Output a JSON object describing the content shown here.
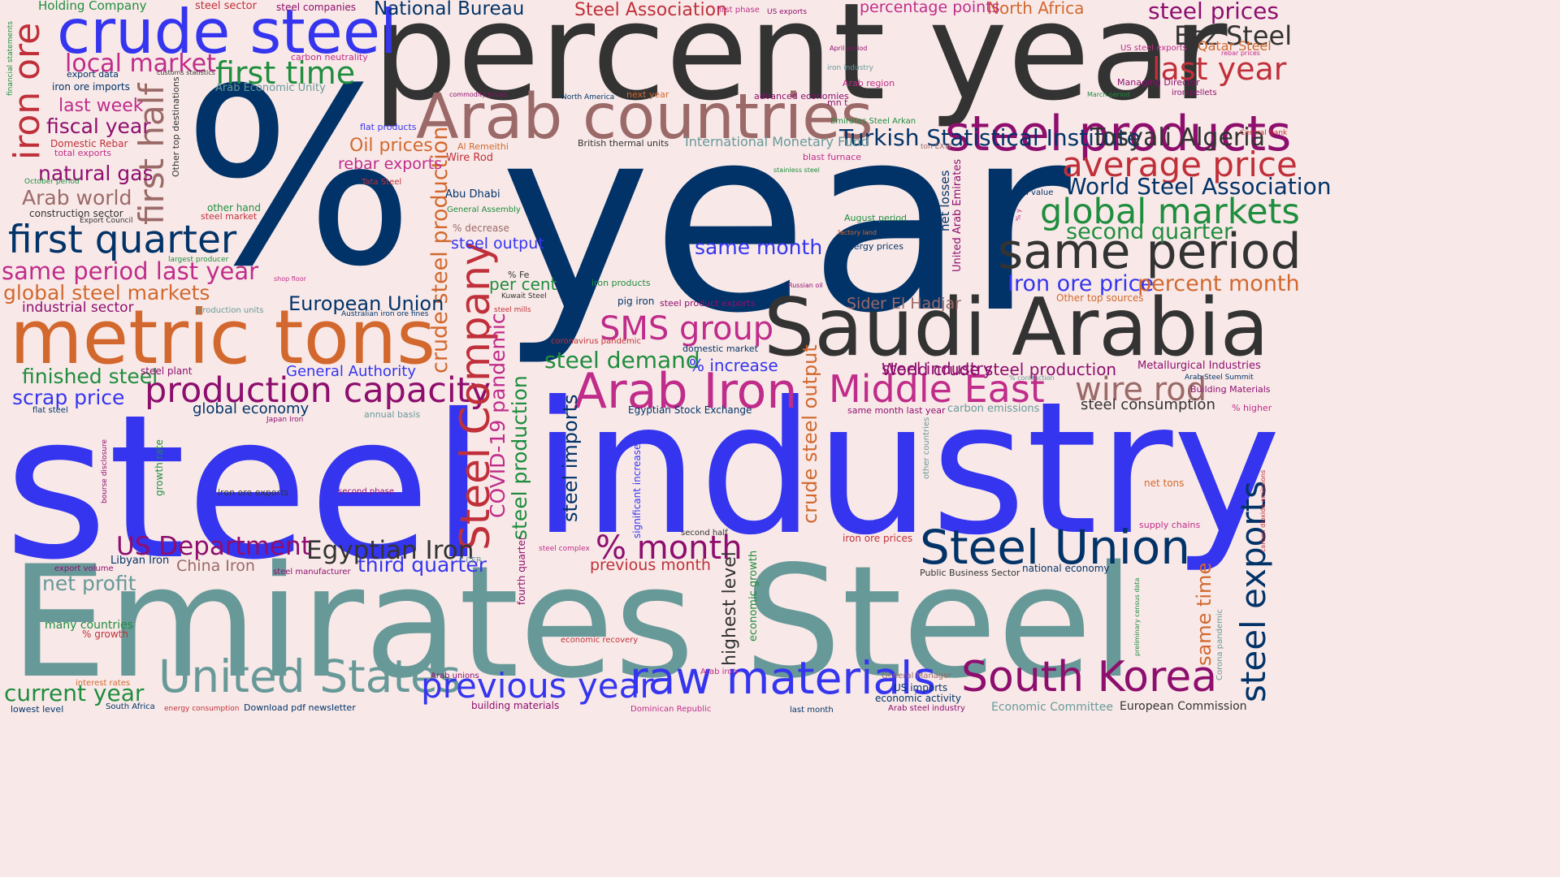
{
  "image_title": "",
  "background": "#f8e9e8",
  "palette": {
    "navy": "#023368",
    "charcoal": "#333333",
    "blue": "#3535ef",
    "teal": "#689999",
    "orange": "#d2682e",
    "crimson": "#c0303a",
    "magenta": "#c02c8a",
    "purple": "#8e0e6e",
    "green": "#1f8d3e",
    "mauve": "#9b6a68"
  },
  "words": [
    {
      "text": "steel",
      "rot": 0
    },
    {
      "text": "industry",
      "rot": 0
    },
    {
      "text": "Emirates Steel",
      "rot": 0
    },
    {
      "text": "year",
      "rot": 0
    },
    {
      "text": "%",
      "rot": 0
    },
    {
      "text": "percent year",
      "rot": 0
    },
    {
      "text": "Saudi Arabia",
      "rot": 0
    },
    {
      "text": "metric tons",
      "rot": 0
    },
    {
      "text": "Arab countries",
      "rot": 0
    },
    {
      "text": "crude steel",
      "rot": 0
    },
    {
      "text": "steel products",
      "rot": 0
    },
    {
      "text": "same period",
      "rot": 0
    },
    {
      "text": "United States",
      "rot": 0
    },
    {
      "text": "raw materials",
      "rot": 0
    },
    {
      "text": "South Korea",
      "rot": 0
    },
    {
      "text": "Steel Union",
      "rot": 0
    },
    {
      "text": "Arab Iron",
      "rot": 0
    },
    {
      "text": "Middle East",
      "rot": 0
    },
    {
      "text": "previous year",
      "rot": 0
    },
    {
      "text": "production capacity",
      "rot": 0
    },
    {
      "text": "first quarter",
      "rot": 0
    },
    {
      "text": "global markets",
      "rot": 0
    },
    {
      "text": "average price",
      "rot": 0
    },
    {
      "text": "SMS group",
      "rot": 0
    },
    {
      "text": "% month",
      "rot": 0
    },
    {
      "text": "wire rod",
      "rot": 0
    },
    {
      "text": "first time",
      "rot": 0
    },
    {
      "text": "last year",
      "rot": 0
    },
    {
      "text": "Ezz Steel",
      "rot": 0
    },
    {
      "text": "steel prices",
      "rot": 0
    },
    {
      "text": "same period last year",
      "rot": 0
    },
    {
      "text": "local market",
      "rot": 0
    },
    {
      "text": "Steel Company",
      "rot": 90
    },
    {
      "text": "steel industry",
      "rot": 0
    },
    {
      "text": "Turkish Statistical Institute",
      "rot": 0
    },
    {
      "text": "World Steel Association",
      "rot": 0
    },
    {
      "text": "Tosyali Algeria",
      "rot": 0
    },
    {
      "text": "second quarter",
      "rot": 0
    },
    {
      "text": "Iron ore price",
      "rot": 0
    },
    {
      "text": "percent month",
      "rot": 0
    },
    {
      "text": "Egyptian Iron",
      "rot": 0
    },
    {
      "text": "US Department",
      "rot": 0
    },
    {
      "text": "steel demand",
      "rot": 0
    },
    {
      "text": "current year",
      "rot": 0
    },
    {
      "text": "iron ore",
      "rot": 90
    },
    {
      "text": "first half",
      "rot": 90
    },
    {
      "text": "steel exports",
      "rot": 90
    },
    {
      "text": "crude steel production",
      "rot": 90
    },
    {
      "text": "steel production",
      "rot": 90
    },
    {
      "text": "COVID-19 pandemic",
      "rot": 90
    },
    {
      "text": "crude steel output",
      "rot": 90
    },
    {
      "text": "steel imports",
      "rot": 90
    },
    {
      "text": "highest level",
      "rot": 90
    },
    {
      "text": "same time",
      "rot": 90
    },
    {
      "text": "European Union",
      "rot": 0
    },
    {
      "text": "scrap price",
      "rot": 0
    },
    {
      "text": "finished steel",
      "rot": 0
    },
    {
      "text": "third quarter",
      "rot": 0
    },
    {
      "text": "global steel markets",
      "rot": 0
    },
    {
      "text": "fiscal year",
      "rot": 0
    },
    {
      "text": "natural gas",
      "rot": 0
    },
    {
      "text": "Arab world",
      "rot": 0
    },
    {
      "text": "last week",
      "rot": 0
    },
    {
      "text": "net profit",
      "rot": 0
    },
    {
      "text": "same month",
      "rot": 0
    },
    {
      "text": "Oil prices",
      "rot": 0
    },
    {
      "text": "rebar exports",
      "rot": 0
    },
    {
      "text": "per cent",
      "rot": 0
    },
    {
      "text": "steel output",
      "rot": 0
    },
    {
      "text": "Sider El Hadjar",
      "rot": 0
    },
    {
      "text": "World crude steel production",
      "rot": 0
    },
    {
      "text": "% increase",
      "rot": 0
    },
    {
      "text": "General Authority",
      "rot": 0
    },
    {
      "text": "National Bureau",
      "rot": 0
    },
    {
      "text": "Steel Association",
      "rot": 0
    },
    {
      "text": "North Africa",
      "rot": 0
    },
    {
      "text": "percentage points",
      "rot": 0
    },
    {
      "text": "global economy",
      "rot": 0
    },
    {
      "text": "industrial sector",
      "rot": 0
    },
    {
      "text": "steel consumption",
      "rot": 0
    },
    {
      "text": "China Iron",
      "rot": 0
    },
    {
      "text": "previous month",
      "rot": 0
    },
    {
      "text": "Metallurgical Industries",
      "rot": 0
    },
    {
      "text": "Holding Company",
      "rot": 0
    },
    {
      "text": "International Monetary Fund",
      "rot": 0
    },
    {
      "text": "steel sector",
      "rot": 0
    },
    {
      "text": "steel companies",
      "rot": 0
    },
    {
      "text": "export data",
      "rot": 0
    },
    {
      "text": "Domestic Rebar",
      "rot": 0
    },
    {
      "text": "iron ore imports",
      "rot": 0
    },
    {
      "text": "Arab Economic Unity",
      "rot": 0
    },
    {
      "text": "carbon neutrality",
      "rot": 0
    },
    {
      "text": "advanced economies",
      "rot": 0
    },
    {
      "text": "Emirates Steel Arkan",
      "rot": 0
    },
    {
      "text": "Al Remeithi",
      "rot": 0
    },
    {
      "text": "Wire Rod",
      "rot": 0
    },
    {
      "text": "British thermal units",
      "rot": 0
    },
    {
      "text": "Abu Dhabi",
      "rot": 0
    },
    {
      "text": "General Assembly",
      "rot": 0
    },
    {
      "text": "% decrease",
      "rot": 0
    },
    {
      "text": "iron products",
      "rot": 0
    },
    {
      "text": "pig iron",
      "rot": 0
    },
    {
      "text": "steel product exports",
      "rot": 0
    },
    {
      "text": "coronavirus pandemic",
      "rot": 0
    },
    {
      "text": "domestic market",
      "rot": 0
    },
    {
      "text": "Egyptian Stock Exchange",
      "rot": 0
    },
    {
      "text": "same month last year",
      "rot": 0
    },
    {
      "text": "carbon emissions",
      "rot": 0
    },
    {
      "text": "Arab Steel Summit",
      "rot": 0
    },
    {
      "text": "Building Materials",
      "rot": 0
    },
    {
      "text": "% higher",
      "rot": 0
    },
    {
      "text": "net tons",
      "rot": 0
    },
    {
      "text": "supply chains",
      "rot": 0
    },
    {
      "text": "national economy",
      "rot": 0
    },
    {
      "text": "Public Business Sector",
      "rot": 0
    },
    {
      "text": "iron ore prices",
      "rot": 0
    },
    {
      "text": "General Manager",
      "rot": 0
    },
    {
      "text": "US imports",
      "rot": 0
    },
    {
      "text": "economic activity",
      "rot": 0
    },
    {
      "text": "Arab steel industry",
      "rot": 0
    },
    {
      "text": "Economic Committee",
      "rot": 0
    },
    {
      "text": "European Commission",
      "rot": 0
    },
    {
      "text": "Download pdf newsletter",
      "rot": 0
    },
    {
      "text": "building materials",
      "rot": 0
    },
    {
      "text": "Dominican Republic",
      "rot": 0
    },
    {
      "text": "last month",
      "rot": 0
    },
    {
      "text": "lowest level",
      "rot": 0
    },
    {
      "text": "South Africa",
      "rot": 0
    },
    {
      "text": "energy consumption",
      "rot": 0
    },
    {
      "text": "Libyan Iron",
      "rot": 0
    },
    {
      "text": "construction sector",
      "rot": 0
    },
    {
      "text": "other hand",
      "rot": 0
    },
    {
      "text": "steel market",
      "rot": 0
    },
    {
      "text": "Export Council",
      "rot": 0
    },
    {
      "text": "largest producer",
      "rot": 0
    },
    {
      "text": "production units",
      "rot": 0
    },
    {
      "text": "Australian iron ore fines",
      "rot": 0
    },
    {
      "text": "steel plant",
      "rot": 0
    },
    {
      "text": "flat steel",
      "rot": 0
    },
    {
      "text": "Japan Iron",
      "rot": 0
    },
    {
      "text": "annual basis",
      "rot": 0
    },
    {
      "text": "iron ore exports",
      "rot": 0
    },
    {
      "text": "second phase",
      "rot": 0
    },
    {
      "text": "export volume",
      "rot": 0
    },
    {
      "text": "steel manufacturer",
      "rot": 0
    },
    {
      "text": "many countries",
      "rot": 0
    },
    {
      "text": "% growth",
      "rot": 0
    },
    {
      "text": "interest rates",
      "rot": 0
    },
    {
      "text": "economic recovery",
      "rot": 0
    },
    {
      "text": "Arab unions",
      "rot": 0
    },
    {
      "text": "Arab iron",
      "rot": 0
    },
    {
      "text": "second half",
      "rot": 0
    },
    {
      "text": "steel complex",
      "rot": 0
    },
    {
      "text": "t CFR",
      "rot": 0
    },
    {
      "text": "fourth quarter",
      "rot": 90
    },
    {
      "text": "significant increase",
      "rot": 90
    },
    {
      "text": "economic growth",
      "rot": 90
    },
    {
      "text": "growth rate",
      "rot": 90
    },
    {
      "text": "bourse disclosure",
      "rot": 90
    },
    {
      "text": "financial statements",
      "rot": 90
    },
    {
      "text": "Other top destinations",
      "rot": 90
    },
    {
      "text": "net losses",
      "rot": 90
    },
    {
      "text": "United Arab Emirates",
      "rot": 90
    },
    {
      "text": "other countries",
      "rot": 90
    },
    {
      "text": "preliminary census data",
      "rot": 90
    },
    {
      "text": "Corona pandemic",
      "rot": 90
    },
    {
      "text": "carbon dioxide emissions",
      "rot": 90
    },
    {
      "text": "total exports",
      "rot": 0
    },
    {
      "text": "October period",
      "rot": 0
    },
    {
      "text": "customs statistics",
      "rot": 0
    },
    {
      "text": "first phase",
      "rot": 0
    },
    {
      "text": "US exports",
      "rot": 0
    },
    {
      "text": "April period",
      "rot": 0
    },
    {
      "text": "iron industry",
      "rot": 0
    },
    {
      "text": "Arab region",
      "rot": 0
    },
    {
      "text": "mn t",
      "rot": 0
    },
    {
      "text": "US steel exports",
      "rot": 0
    },
    {
      "text": "Qatar Steel",
      "rot": 0
    },
    {
      "text": "rebar prices",
      "rot": 0
    },
    {
      "text": "Managing Director",
      "rot": 0
    },
    {
      "text": "March period",
      "rot": 0
    },
    {
      "text": "iron pellets",
      "rot": 0
    },
    {
      "text": "Central Bank",
      "rot": 0
    },
    {
      "text": "commodity prices",
      "rot": 0
    },
    {
      "text": "North America",
      "rot": 0
    },
    {
      "text": "next year",
      "rot": 0
    },
    {
      "text": "flat products",
      "rot": 0
    },
    {
      "text": "ton EXW",
      "rot": 0
    },
    {
      "text": "blast furnace",
      "rot": 0
    },
    {
      "text": "stainless steel",
      "rot": 0
    },
    {
      "text": "Tata Steel",
      "rot": 0
    },
    {
      "text": "total value",
      "rot": 0
    },
    {
      "text": "% y",
      "rot": 90
    },
    {
      "text": "August period",
      "rot": 0
    },
    {
      "text": "factory land",
      "rot": 0
    },
    {
      "text": "energy prices",
      "rot": 0
    },
    {
      "text": "Kuwait Steel",
      "rot": 0
    },
    {
      "text": "steel mills",
      "rot": 0
    },
    {
      "text": "% Fe",
      "rot": 0
    },
    {
      "text": "shop floor",
      "rot": 0
    },
    {
      "text": "Russian oil",
      "rot": 0
    },
    {
      "text": "Other top sources",
      "rot": 0
    },
    {
      "text": "% contraction",
      "rot": 0
    }
  ]
}
